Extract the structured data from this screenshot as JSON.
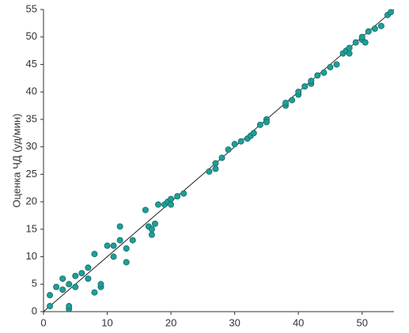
{
  "chart_data": {
    "type": "scatter",
    "y_label": "Оценка ЧД (уд/мин)",
    "x": [
      1,
      1,
      2,
      3,
      3,
      4,
      4,
      4,
      5,
      5,
      6,
      7,
      7,
      8,
      8,
      9,
      9,
      10,
      11,
      11,
      12,
      12,
      13,
      13,
      14,
      16,
      16.5,
      17,
      17,
      17.5,
      18,
      19,
      19.5,
      20,
      20,
      21,
      22,
      26,
      27,
      27,
      28,
      29,
      30,
      31,
      32,
      32.5,
      33,
      34,
      35,
      35,
      38,
      38,
      39,
      40,
      40,
      41,
      42,
      42,
      43,
      44,
      45,
      46,
      47,
      47.5,
      48,
      48,
      49,
      50,
      50,
      50.5,
      51,
      52,
      53,
      54,
      54.5
    ],
    "values": [
      1,
      3,
      4.5,
      4,
      6,
      0.5,
      1,
      5,
      6.5,
      4.5,
      7,
      6,
      8,
      10.5,
      3.5,
      4.5,
      5,
      12,
      12,
      10,
      15.5,
      13,
      9,
      11.5,
      13,
      18.5,
      15.5,
      14,
      15,
      16,
      19.5,
      19.5,
      20,
      20.5,
      19.5,
      21,
      21.5,
      25.5,
      26,
      27,
      28,
      29.5,
      30.5,
      31,
      31.5,
      32,
      32.5,
      34,
      35,
      34.5,
      37.5,
      38,
      38.5,
      39.5,
      40,
      41,
      41.5,
      42,
      43,
      43.5,
      44.5,
      45,
      47,
      47.5,
      47,
      48,
      49,
      49.5,
      50,
      49,
      51,
      51.5,
      52,
      54,
      54.5
    ],
    "color": "#1f9e98",
    "identity_line": true,
    "xlim": [
      0,
      55
    ],
    "xticks": [
      0,
      10,
      20,
      30,
      40,
      50
    ],
    "ylim": [
      0,
      55
    ],
    "yticks": [
      0,
      5,
      10,
      15,
      20,
      25,
      30,
      35,
      40,
      45,
      50,
      55
    ]
  }
}
